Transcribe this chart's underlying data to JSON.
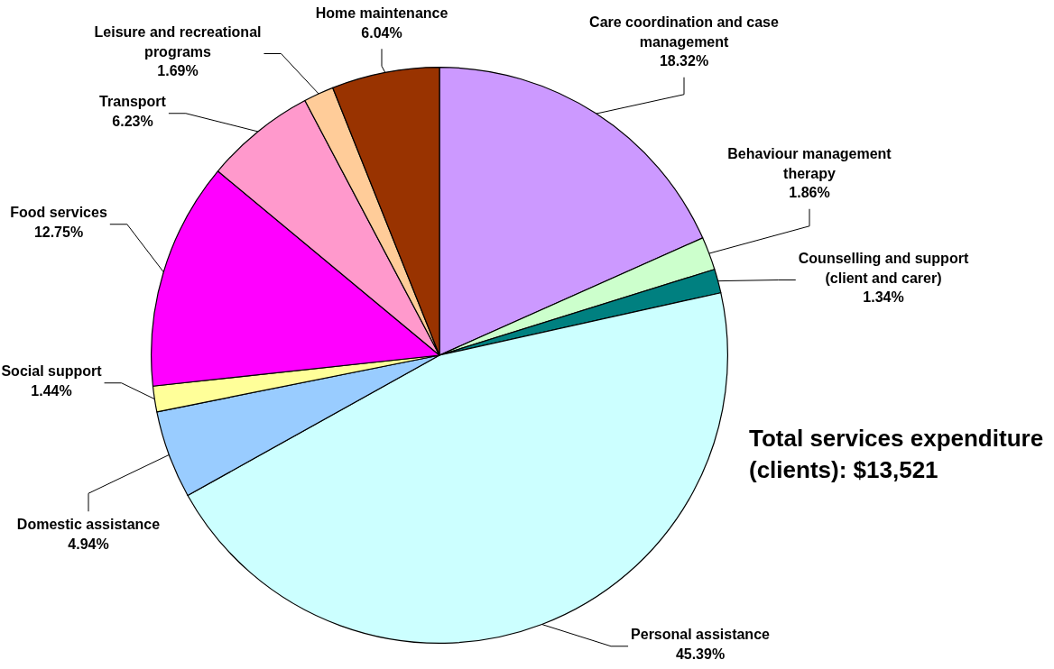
{
  "chart_data": {
    "type": "pie",
    "categories": [
      "Care coordination and case management",
      "Behaviour management therapy",
      "Counselling and support (client and carer)",
      "Personal assistance",
      "Domestic assistance",
      "Social support",
      "Food services",
      "Transport",
      "Leisure and recreational programs",
      "Home maintenance"
    ],
    "values": [
      18.32,
      1.86,
      1.34,
      45.39,
      4.94,
      1.44,
      12.75,
      6.23,
      1.69,
      6.04
    ],
    "colors": [
      "#cc99ff",
      "#ccffcc",
      "#008080",
      "#ccffff",
      "#99ccff",
      "#ffff99",
      "#ff00ff",
      "#ff99cc",
      "#ffcc99",
      "#993300"
    ],
    "value_labels": [
      "18.32%",
      "1.86%",
      "1.34%",
      "45.39%",
      "4.94%",
      "1.44%",
      "12.75%",
      "6.23%",
      "1.69%",
      "6.04%"
    ],
    "annotations": [
      "Total services expenditure (clients): $13,521"
    ]
  }
}
